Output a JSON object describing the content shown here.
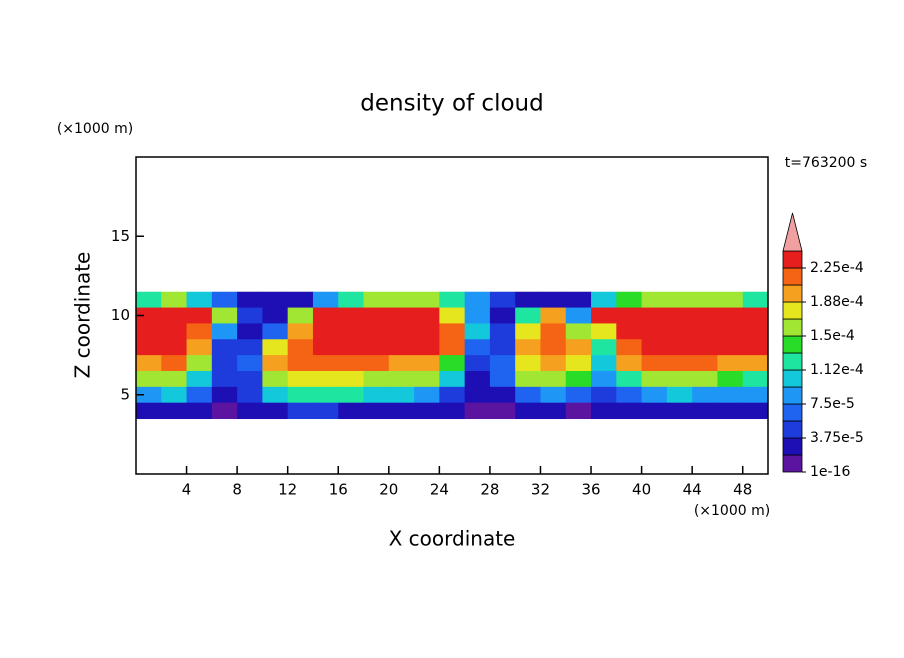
{
  "chart_data": {
    "type": "contour",
    "title": "density of cloud",
    "annotation": "t=763200 s",
    "x_label": "X coordinate",
    "y_label": "Z coordinate",
    "x_unit": "(×1000 m)",
    "y_unit": "(×1000 m)",
    "xlim": [
      0,
      50
    ],
    "ylim": [
      0,
      20
    ],
    "xticks": [
      4,
      8,
      12,
      16,
      20,
      24,
      28,
      32,
      36,
      40,
      44,
      48
    ],
    "yticks": [
      5,
      10,
      15
    ],
    "x": [
      1,
      3,
      5,
      7,
      9,
      11,
      13,
      15,
      17,
      19,
      21,
      23,
      25,
      27,
      29,
      31,
      33,
      35,
      37,
      39,
      41,
      43,
      45,
      47,
      49
    ],
    "y": [
      11,
      10,
      9,
      8,
      7,
      6,
      5,
      4
    ],
    "values": [
      [
        0.00012,
        0.00015,
        0.0001,
        6e-05,
        3e-05,
        2e-05,
        3e-05,
        8e-05,
        0.00012,
        0.00015,
        0.00016,
        0.00015,
        0.00012,
        8e-05,
        5e-05,
        3e-05,
        2e-05,
        2e-05,
        0.0001,
        0.00014,
        0.00016,
        0.00016,
        0.00016,
        0.00015,
        0.00012
      ],
      [
        0.00024,
        0.00024,
        0.00023,
        0.00015,
        5e-05,
        3e-05,
        0.00015,
        0.00023,
        0.00024,
        0.00024,
        0.00024,
        0.00023,
        0.00018,
        8e-05,
        3e-05,
        0.00012,
        0.00019,
        8e-05,
        0.00023,
        0.00024,
        0.00024,
        0.00024,
        0.00024,
        0.00024,
        0.00024
      ],
      [
        0.00024,
        0.00024,
        0.00022,
        8e-05,
        3e-05,
        6e-05,
        0.0002,
        0.00023,
        0.00024,
        0.00024,
        0.00024,
        0.00024,
        0.00022,
        0.0001,
        4e-05,
        0.00018,
        0.00022,
        0.00015,
        0.00018,
        0.00023,
        0.00024,
        0.00024,
        0.00024,
        0.00024,
        0.00024
      ],
      [
        0.00023,
        0.00023,
        0.0002,
        5e-05,
        4e-05,
        0.00018,
        0.00022,
        0.00023,
        0.00024,
        0.00024,
        0.00023,
        0.00023,
        0.00021,
        6e-05,
        5e-05,
        0.00019,
        0.00021,
        0.00019,
        0.00012,
        0.00022,
        0.00023,
        0.00023,
        0.00023,
        0.00023,
        0.00023
      ],
      [
        0.0002,
        0.00021,
        0.00015,
        4e-05,
        6e-05,
        0.0002,
        0.00022,
        0.00022,
        0.00022,
        0.00021,
        0.0002,
        0.0002,
        0.00014,
        4e-05,
        7e-05,
        0.00018,
        0.0002,
        0.00018,
        0.0001,
        0.00019,
        0.00021,
        0.00021,
        0.00021,
        0.0002,
        0.0002
      ],
      [
        0.00015,
        0.00016,
        0.00011,
        4e-05,
        5e-05,
        0.00016,
        0.00018,
        0.00018,
        0.00017,
        0.00016,
        0.00016,
        0.00015,
        0.0001,
        3e-05,
        6e-05,
        0.00015,
        0.00016,
        0.00014,
        8e-05,
        0.00012,
        0.00015,
        0.00016,
        0.00015,
        0.00014,
        0.00013
      ],
      [
        9e-05,
        0.0001,
        6e-05,
        3e-05,
        4e-05,
        0.0001,
        0.00012,
        0.00013,
        0.00012,
        0.00011,
        0.00011,
        9e-05,
        5e-05,
        2e-05,
        3e-05,
        7e-05,
        8e-05,
        6e-05,
        5e-05,
        7e-05,
        9e-05,
        0.0001,
        9e-05,
        9e-05,
        8e-05
      ],
      [
        3e-05,
        3e-05,
        2e-05,
        1e-05,
        2e-05,
        3e-05,
        4e-05,
        4e-05,
        3e-05,
        3e-05,
        3e-05,
        2e-05,
        2e-05,
        1e-05,
        1e-05,
        2e-05,
        2e-05,
        1e-05,
        2e-05,
        3e-05,
        3e-05,
        3e-05,
        3e-05,
        3e-05,
        3e-05
      ]
    ],
    "colorbar_levels": [
      1e-16,
      1.875e-05,
      3.75e-05,
      5.625e-05,
      7.5e-05,
      9.375e-05,
      0.0001125,
      0.00013125,
      0.00015,
      0.00016875,
      0.0001875,
      0.00020625,
      0.000225,
      0.00024375
    ],
    "colors": [
      "#5a14a0",
      "#1e0fb4",
      "#1e3cdc",
      "#1e64f0",
      "#1e96f5",
      "#14c8dc",
      "#1ee6a0",
      "#28dc28",
      "#a0e632",
      "#e6e61e",
      "#f5a01e",
      "#f56414",
      "#e61e1e",
      "#f0a0a0"
    ],
    "colorbar_ticks": [
      {
        "value": 1e-16,
        "label": "1e-16"
      },
      {
        "value": 3.75e-05,
        "label": "3.75e-5"
      },
      {
        "value": 7.5e-05,
        "label": "7.5e-5"
      },
      {
        "value": 0.0001125,
        "label": "1.12e-4"
      },
      {
        "value": 0.00015,
        "label": "1.5e-4"
      },
      {
        "value": 0.0001875,
        "label": "1.88e-4"
      },
      {
        "value": 0.000225,
        "label": "2.25e-4"
      }
    ]
  }
}
